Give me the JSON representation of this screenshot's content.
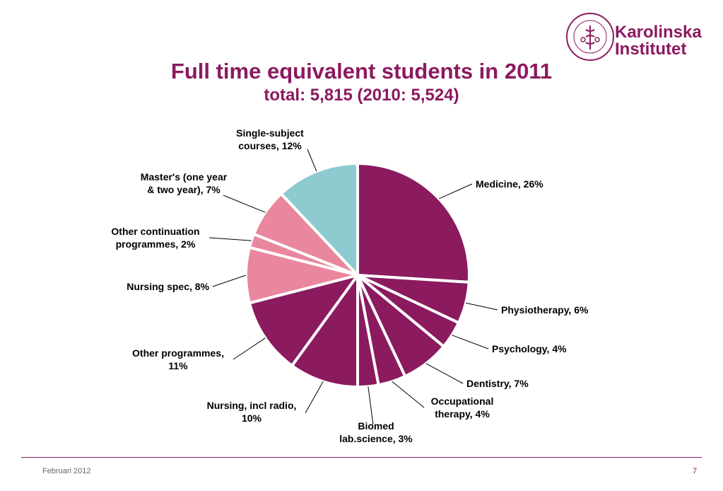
{
  "header": {
    "logo_lines": [
      "Karolinska",
      "Institutet"
    ],
    "seal_text": "KAROLINSKA INSTITUTET ANNO 1810"
  },
  "footer": {
    "date": "Februari 2012",
    "page_number": "7"
  },
  "colors": {
    "primary": "#8b1a5f",
    "pink": "#e8879e",
    "teal": "#8dcbd0",
    "separator": "#ffffff"
  },
  "chart_data": {
    "type": "pie",
    "title": "Full time equivalent students in 2011",
    "subtitle": "total: 5,815 (2010: 5,524)",
    "start_angle_deg": 0,
    "direction": "clockwise",
    "slices": [
      {
        "label_lines": [
          "Medicine, 26%"
        ],
        "value": 26,
        "color": "#8b1a5f"
      },
      {
        "label_lines": [
          "Physiotherapy, 6%"
        ],
        "value": 6,
        "color": "#8b1a5f"
      },
      {
        "label_lines": [
          "Psychology, 4%"
        ],
        "value": 4,
        "color": "#8b1a5f"
      },
      {
        "label_lines": [
          "Dentistry, 7%"
        ],
        "value": 7,
        "color": "#8b1a5f"
      },
      {
        "label_lines": [
          "Occupational",
          "therapy, 4%"
        ],
        "value": 4,
        "color": "#8b1a5f"
      },
      {
        "label_lines": [
          "Biomed",
          "lab.science, 3%"
        ],
        "value": 3,
        "color": "#8b1a5f"
      },
      {
        "label_lines": [
          "Nursing, incl radio,",
          "10%"
        ],
        "value": 10,
        "color": "#8b1a5f"
      },
      {
        "label_lines": [
          "Other programmes,",
          "11%"
        ],
        "value": 11,
        "color": "#8b1a5f"
      },
      {
        "label_lines": [
          "Nursing spec, 8%"
        ],
        "value": 8,
        "color": "#e8879e"
      },
      {
        "label_lines": [
          "Other continuation",
          "programmes, 2%"
        ],
        "value": 2,
        "color": "#e8879e"
      },
      {
        "label_lines": [
          "Master's (one year",
          "& two year), 7%"
        ],
        "value": 7,
        "color": "#e8879e"
      },
      {
        "label_lines": [
          "Single-subject",
          "courses, 12%"
        ],
        "value": 12,
        "color": "#8dcbd0"
      }
    ]
  }
}
